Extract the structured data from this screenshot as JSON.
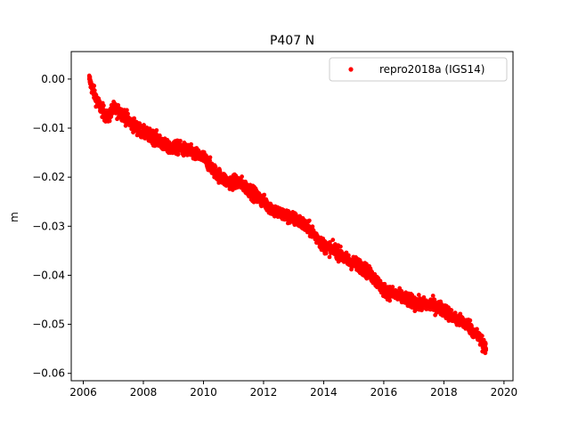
{
  "chart_data": {
    "type": "scatter",
    "title": "P407 N",
    "xlabel": "",
    "ylabel": "m",
    "xlim": [
      2005.6,
      2020.3
    ],
    "ylim": [
      -0.0615,
      0.0056
    ],
    "x_ticks": [
      2006,
      2008,
      2010,
      2012,
      2014,
      2016,
      2018,
      2020
    ],
    "x_tick_labels": [
      "2006",
      "2008",
      "2010",
      "2012",
      "2014",
      "2016",
      "2018",
      "2020"
    ],
    "y_ticks": [
      0.0,
      -0.01,
      -0.02,
      -0.03,
      -0.04,
      -0.05,
      -0.06
    ],
    "y_tick_labels": [
      "0.00",
      "−0.01",
      "−0.02",
      "−0.03",
      "−0.04",
      "−0.05",
      "−0.06"
    ],
    "grid": false,
    "legend_position": "top-right",
    "series": [
      {
        "name": "repro2018a (IGS14)",
        "color": "#ff0000",
        "marker": "circle",
        "x": [
          2006.2,
          2006.3,
          2006.5,
          2006.8,
          2007.0,
          2007.3,
          2007.6,
          2008.0,
          2008.4,
          2008.8,
          2009.2,
          2009.6,
          2010.0,
          2010.4,
          2010.8,
          2011.2,
          2011.6,
          2012.0,
          2012.4,
          2012.8,
          2013.2,
          2013.6,
          2014.0,
          2014.4,
          2014.8,
          2015.2,
          2015.6,
          2016.0,
          2016.4,
          2016.8,
          2017.2,
          2017.6,
          2018.0,
          2018.4,
          2018.8,
          2019.2,
          2019.4
        ],
        "y": [
          0.0,
          -0.002,
          -0.005,
          -0.008,
          -0.006,
          -0.007,
          -0.009,
          -0.011,
          -0.012,
          -0.014,
          -0.014,
          -0.015,
          -0.016,
          -0.019,
          -0.021,
          -0.021,
          -0.023,
          -0.025,
          -0.027,
          -0.028,
          -0.029,
          -0.031,
          -0.034,
          -0.035,
          -0.037,
          -0.038,
          -0.04,
          -0.043,
          -0.044,
          -0.045,
          -0.046,
          -0.046,
          -0.047,
          -0.049,
          -0.05,
          -0.053,
          -0.055
        ]
      }
    ]
  }
}
